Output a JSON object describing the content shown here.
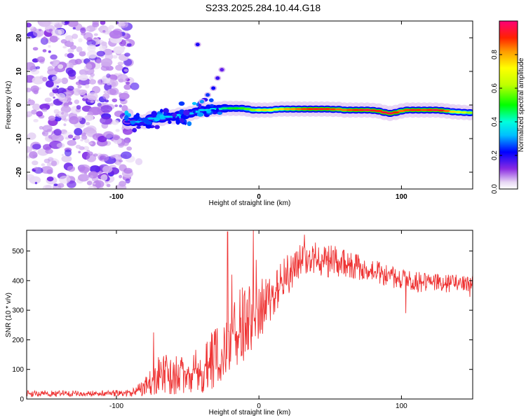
{
  "title": "S233.2025.284.10.44.G18",
  "chart_data": [
    {
      "type": "heatmap",
      "name": "spectrogram",
      "xlabel": "Height of straight line (km)",
      "ylabel": "Frequency (Hz)",
      "xlim": [
        -163,
        150
      ],
      "ylim": [
        -25,
        25
      ],
      "xticks": [
        "-100",
        "0",
        "100"
      ],
      "yticks": [
        "20",
        "10",
        "0",
        "-10",
        "-20"
      ],
      "colorbar": {
        "label": "Normalized spectral amplitude",
        "range": [
          0.0,
          1.0
        ],
        "ticks": [
          "0.0",
          "0.2",
          "0.4",
          "0.6",
          "0.8"
        ]
      },
      "ridge": [
        {
          "x": -92,
          "y": -5,
          "a": 0.2
        },
        {
          "x": -88,
          "y": -5,
          "a": 0.3
        },
        {
          "x": -84,
          "y": -5,
          "a": 0.33
        },
        {
          "x": -80,
          "y": -5,
          "a": 0.3
        },
        {
          "x": -76,
          "y": -4,
          "a": 0.33
        },
        {
          "x": -72,
          "y": -4,
          "a": 0.35
        },
        {
          "x": -68,
          "y": -4,
          "a": 0.32
        },
        {
          "x": -64,
          "y": -3.5,
          "a": 0.36
        },
        {
          "x": -60,
          "y": -3.5,
          "a": 0.35
        },
        {
          "x": -56,
          "y": -3,
          "a": 0.36
        },
        {
          "x": -52,
          "y": -3,
          "a": 0.38
        },
        {
          "x": -48,
          "y": -2.5,
          "a": 0.35
        },
        {
          "x": -44,
          "y": -2,
          "a": 0.34
        },
        {
          "x": -40,
          "y": -1.5,
          "a": 0.36
        },
        {
          "x": -36,
          "y": -1.5,
          "a": 0.38
        },
        {
          "x": -32,
          "y": -1.2,
          "a": 0.4
        },
        {
          "x": -28,
          "y": -1.2,
          "a": 0.42
        },
        {
          "x": -24,
          "y": -1,
          "a": 0.45
        },
        {
          "x": -20,
          "y": -1,
          "a": 0.48
        },
        {
          "x": -16,
          "y": -1,
          "a": 0.5
        },
        {
          "x": -12,
          "y": -1,
          "a": 0.52
        },
        {
          "x": -8,
          "y": -1.2,
          "a": 0.55
        },
        {
          "x": -4,
          "y": -1.5,
          "a": 0.6
        },
        {
          "x": 0,
          "y": -1.5,
          "a": 0.7
        },
        {
          "x": 4,
          "y": -1.5,
          "a": 0.75
        },
        {
          "x": 8,
          "y": -1.5,
          "a": 0.72
        },
        {
          "x": 12,
          "y": -1.3,
          "a": 0.7
        },
        {
          "x": 16,
          "y": -1.2,
          "a": 0.75
        },
        {
          "x": 20,
          "y": -1.2,
          "a": 0.8
        },
        {
          "x": 24,
          "y": -1.2,
          "a": 0.82
        },
        {
          "x": 28,
          "y": -1.2,
          "a": 0.85
        },
        {
          "x": 32,
          "y": -1.2,
          "a": 0.88
        },
        {
          "x": 36,
          "y": -1.2,
          "a": 0.9
        },
        {
          "x": 40,
          "y": -1.2,
          "a": 0.92
        },
        {
          "x": 44,
          "y": -1.2,
          "a": 0.92
        },
        {
          "x": 48,
          "y": -1.2,
          "a": 0.9
        },
        {
          "x": 52,
          "y": -1.3,
          "a": 0.88
        },
        {
          "x": 56,
          "y": -1.3,
          "a": 0.85
        },
        {
          "x": 60,
          "y": -1.5,
          "a": 0.85
        },
        {
          "x": 64,
          "y": -1.5,
          "a": 0.88
        },
        {
          "x": 68,
          "y": -1.5,
          "a": 0.9
        },
        {
          "x": 72,
          "y": -1.5,
          "a": 0.92
        },
        {
          "x": 76,
          "y": -1.5,
          "a": 0.95
        },
        {
          "x": 80,
          "y": -1.6,
          "a": 0.93
        },
        {
          "x": 84,
          "y": -1.8,
          "a": 0.9
        },
        {
          "x": 88,
          "y": -2.2,
          "a": 0.95
        },
        {
          "x": 92,
          "y": -2.5,
          "a": 0.95
        },
        {
          "x": 96,
          "y": -2.2,
          "a": 0.9
        },
        {
          "x": 100,
          "y": -1.8,
          "a": 0.85
        },
        {
          "x": 104,
          "y": -1.5,
          "a": 0.88
        },
        {
          "x": 108,
          "y": -1.5,
          "a": 0.92
        },
        {
          "x": 112,
          "y": -1.5,
          "a": 0.9
        },
        {
          "x": 116,
          "y": -1.5,
          "a": 0.88
        },
        {
          "x": 120,
          "y": -1.5,
          "a": 0.92
        },
        {
          "x": 124,
          "y": -1.5,
          "a": 0.95
        },
        {
          "x": 128,
          "y": -1.6,
          "a": 0.92
        },
        {
          "x": 132,
          "y": -1.8,
          "a": 0.85
        },
        {
          "x": 136,
          "y": -2,
          "a": 0.75
        },
        {
          "x": 140,
          "y": -2.1,
          "a": 0.7
        },
        {
          "x": 144,
          "y": -2.2,
          "a": 0.65
        },
        {
          "x": 148,
          "y": -2.3,
          "a": 0.6
        }
      ],
      "secondary_branch": [
        {
          "x": -40,
          "y": 1,
          "a": 0.3
        },
        {
          "x": -36,
          "y": 3,
          "a": 0.25
        },
        {
          "x": -32,
          "y": 5,
          "a": 0.22
        },
        {
          "x": -29,
          "y": 8,
          "a": 0.18
        },
        {
          "x": -26,
          "y": 10.5,
          "a": 0.15
        },
        {
          "x": -43,
          "y": 18,
          "a": 0.2
        }
      ]
    },
    {
      "type": "line",
      "name": "snr",
      "xlabel": "Height of straight line (km)",
      "ylabel": "SNR (10 * v/v)",
      "xlim": [
        -163,
        150
      ],
      "ylim": [
        0,
        570
      ],
      "xticks": [
        "-100",
        "0",
        "100"
      ],
      "yticks": [
        "0",
        "100",
        "200",
        "300",
        "400",
        "500"
      ],
      "color": "#ee3333",
      "envelope": [
        {
          "x": -163,
          "lo": 8,
          "hi": 30
        },
        {
          "x": -120,
          "lo": 8,
          "hi": 28
        },
        {
          "x": -90,
          "lo": 8,
          "hi": 32
        },
        {
          "x": -80,
          "lo": 10,
          "hi": 70
        },
        {
          "x": -70,
          "lo": 15,
          "hi": 160
        },
        {
          "x": -60,
          "lo": 15,
          "hi": 150
        },
        {
          "x": -50,
          "lo": 15,
          "hi": 150
        },
        {
          "x": -40,
          "lo": 20,
          "hi": 180
        },
        {
          "x": -30,
          "lo": 25,
          "hi": 250
        },
        {
          "x": -20,
          "lo": 60,
          "hi": 330
        },
        {
          "x": -10,
          "lo": 120,
          "hi": 390
        },
        {
          "x": 0,
          "lo": 200,
          "hi": 400
        },
        {
          "x": 10,
          "lo": 250,
          "hi": 430
        },
        {
          "x": 20,
          "lo": 350,
          "hi": 490
        },
        {
          "x": 30,
          "lo": 420,
          "hi": 530
        },
        {
          "x": 40,
          "lo": 420,
          "hi": 530
        },
        {
          "x": 50,
          "lo": 410,
          "hi": 520
        },
        {
          "x": 60,
          "lo": 410,
          "hi": 510
        },
        {
          "x": 70,
          "lo": 400,
          "hi": 490
        },
        {
          "x": 80,
          "lo": 390,
          "hi": 470
        },
        {
          "x": 90,
          "lo": 380,
          "hi": 460
        },
        {
          "x": 100,
          "lo": 370,
          "hi": 440
        },
        {
          "x": 110,
          "lo": 360,
          "hi": 430
        },
        {
          "x": 120,
          "lo": 360,
          "hi": 430
        },
        {
          "x": 130,
          "lo": 360,
          "hi": 420
        },
        {
          "x": 140,
          "lo": 360,
          "hi": 420
        },
        {
          "x": 150,
          "lo": 360,
          "hi": 420
        }
      ],
      "spikes": [
        {
          "x": -74,
          "y": 225
        },
        {
          "x": -22,
          "y": 565
        },
        {
          "x": -19,
          "y": 420
        },
        {
          "x": -4,
          "y": 570
        },
        {
          "x": -2,
          "y": 470
        },
        {
          "x": 32,
          "y": 555
        },
        {
          "x": 103,
          "y": 290
        },
        {
          "x": 148,
          "y": 345
        }
      ]
    }
  ]
}
